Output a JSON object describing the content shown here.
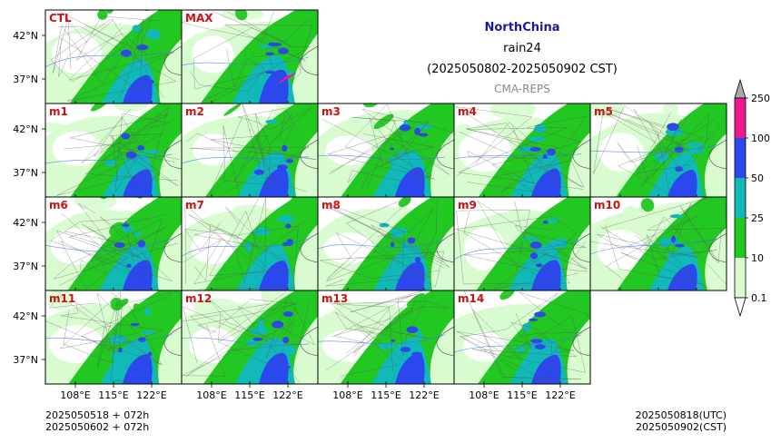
{
  "header": {
    "region": "NorthChina",
    "variable": "rain24",
    "period": "(2025050802-2025050902 CST)",
    "source": "CMA-REPS",
    "region_color": "#1a1aa0",
    "source_color": "#888888"
  },
  "panels": [
    {
      "label": "CTL",
      "intensity": 0.55
    },
    {
      "label": "MAX",
      "intensity": 0.95
    },
    {
      "label": "m1",
      "intensity": 0.5
    },
    {
      "label": "m2",
      "intensity": 0.6
    },
    {
      "label": "m3",
      "intensity": 0.65
    },
    {
      "label": "m4",
      "intensity": 0.55
    },
    {
      "label": "m5",
      "intensity": 0.45
    },
    {
      "label": "m6",
      "intensity": 0.7
    },
    {
      "label": "m7",
      "intensity": 0.65
    },
    {
      "label": "m8",
      "intensity": 0.6
    },
    {
      "label": "m9",
      "intensity": 0.7
    },
    {
      "label": "m10",
      "intensity": 0.4
    },
    {
      "label": "m11",
      "intensity": 0.65
    },
    {
      "label": "m12",
      "intensity": 0.75
    },
    {
      "label": "m13",
      "intensity": 0.7
    },
    {
      "label": "m14",
      "intensity": 0.6
    }
  ],
  "label_color": "#cc1111",
  "lat_ticks": [
    "42°N",
    "37°N"
  ],
  "lon_ticks": [
    "108°E",
    "115°E",
    "122°E"
  ],
  "colorbar": {
    "levels": [
      "0.1",
      "10",
      "25",
      "50",
      "100",
      "250"
    ],
    "colors": [
      "#d8fcd0",
      "#22c722",
      "#10b8b8",
      "#2a48ee",
      "#ee1a8c",
      "#a8a8a8"
    ]
  },
  "footer": {
    "left_line1": "2025050518  +  072h",
    "left_line2": "2025050602  +  072h",
    "right_line1": "2025050818(UTC)",
    "right_line2": "2025050902(CST)"
  }
}
